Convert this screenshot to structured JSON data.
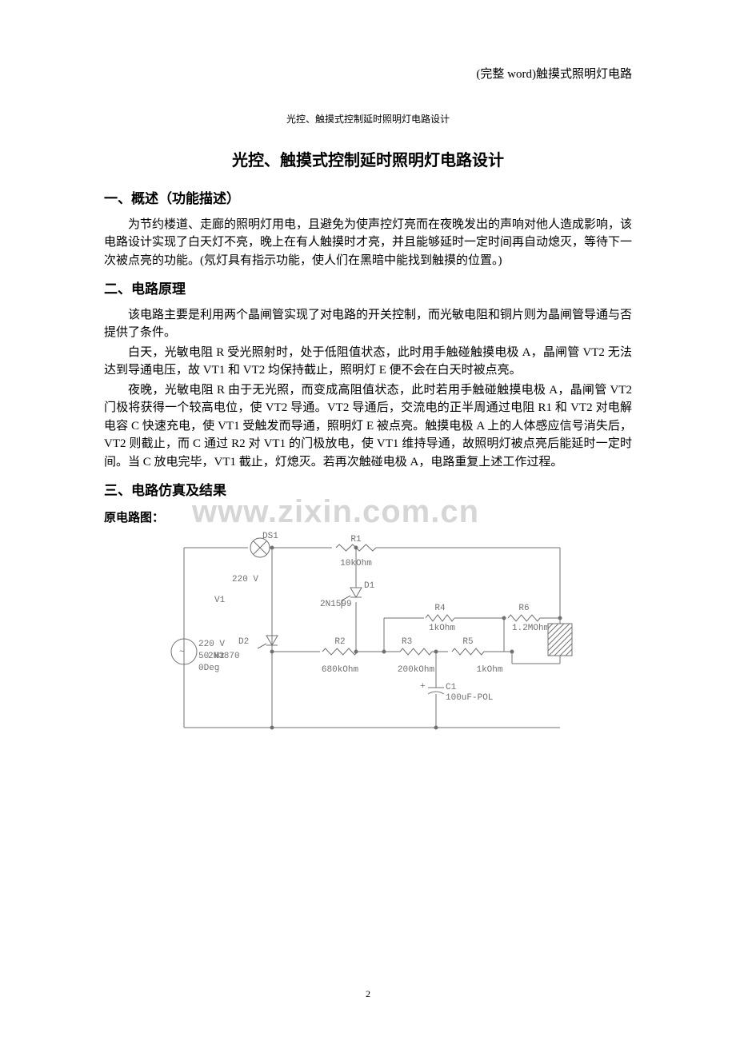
{
  "header_right": "(完整 word)触摸式照明灯电路",
  "small_title": "光控、触摸式控制延时照明灯电路设计",
  "main_title": "光控、触摸式控制延时照明灯电路设计",
  "sections": {
    "s1": {
      "heading": "一、概述（功能描述）",
      "p1": "为节约楼道、走廊的照明灯用电，且避免为使声控灯亮而在夜晚发出的声响对他人造成影响，该电路设计实现了白天灯不亮，晚上在有人触摸时才亮，并且能够延时一定时间再自动熄灭，等待下一次被点亮的功能。(氖灯具有指示功能，使人们在黑暗中能找到触摸的位置。)"
    },
    "s2": {
      "heading": "二、电路原理",
      "p1": "该电路主要是利用两个晶闸管实现了对电路的开关控制，而光敏电阻和铜片则为晶闸管导通与否提供了条件。",
      "p2": "白天，光敏电阻 R 受光照射时，处于低阻值状态，此时用手触碰触摸电极 A，晶闸管 VT2 无法达到导通电压，故 VT1 和 VT2 均保持截止，照明灯 E 便不会在白天时被点亮。",
      "p3": "夜晚，光敏电阻 R 由于无光照，而变成高阻值状态，此时若用手触碰触摸电极 A，晶闸管 VT2 门极将获得一个较高电位，使 VT2 导通。VT2 导通后，交流电的正半周通过电阻 R1 和 VT2 对电解电容 C 快速充电，使 VT1 受触发而导通，照明灯 E 被点亮。触摸电极 A 上的人体感应信号消失后，VT2 则截止，而 C 通过 R2 对 VT1 的门极放电，使 VT1 维持导通，故照明灯被点亮后能延时一定时间。当 C 放电完毕，VT1 截止，灯熄灭。若再次触碰电极 A，电路重复上述工作过程。"
    },
    "s3": {
      "heading": "三、电路仿真及结果",
      "sub": "原电路图："
    }
  },
  "watermark": "www.zixin.com.cn",
  "page_number": "2",
  "circuit": {
    "stroke": "#707070",
    "text_color": "#707070",
    "font_family": "Consolas, 'Courier New', monospace",
    "font_size": 11,
    "labels": {
      "DS1": "DS1",
      "R1": "R1",
      "R1v": "10kOhm",
      "v220a": "220 V",
      "v220b": "220 V",
      "V1": "V1",
      "D1": "D1",
      "D1v": "2N1599",
      "R4": "R4",
      "R4v": "1kOhm",
      "R6": "R6",
      "R6v": "1.2MOhm",
      "D2": "D2",
      "D2m": "2N3870",
      "hz": "50 Hz",
      "deg": "0Deg",
      "R2": "R2",
      "R2v": "680kOhm",
      "R3": "R3",
      "R3v": "200kOhm",
      "R5": "R5",
      "R5v": "1kOhm",
      "C1": "C1",
      "C1v": "100uF-POL",
      "tilde": "~",
      "plus": "+"
    }
  }
}
